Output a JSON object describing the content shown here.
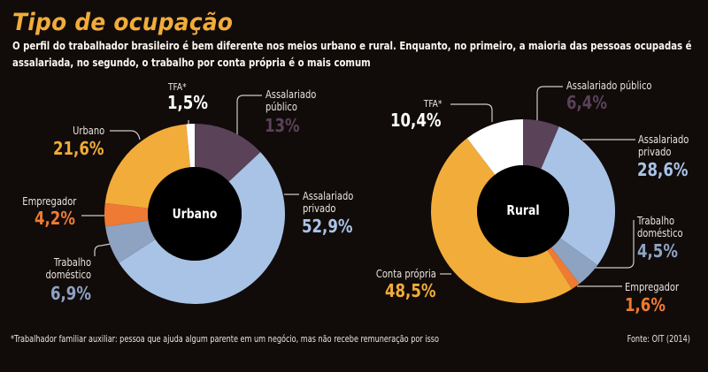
{
  "title": "Tipo de ocupação",
  "subtitle": {
    "line1": "O perfil do trabalhador brasileiro é bem diferente nos meios urbano e rural. Enquanto, no primeiro, a maioria das pessoas ocupadas é",
    "line2": "assalariada, no segundo, o trabalho por conta própria é o mais comum"
  },
  "footnote": "*Trabalhador familiar auxiliar: pessoa que ajuda algum parente em um negócio, mas não recebe remuneração por isso",
  "source": "Fonte: OIT (2014)",
  "colors": {
    "assalariado_publico": "#5a4258",
    "assalariado_privado": "#a9c3e6",
    "trabalho_domestico": "#8ea2c2",
    "empregador": "#ef7a33",
    "conta_propria": "#f2ac3a",
    "tfa": "#ffffff"
  },
  "chart_data": [
    {
      "type": "pie",
      "title": "Urbano",
      "center_label": "Urbano",
      "start": "top",
      "direction": "clockwise",
      "slices": [
        {
          "key": "assalariado_publico",
          "label": "Assalariado público",
          "label_lines": [
            "Assalariado",
            "público"
          ],
          "value": 13,
          "value_label": "13%",
          "value_color": "#5a4258"
        },
        {
          "key": "assalariado_privado",
          "label": "Assalariado privado",
          "label_lines": [
            "Assalariado",
            "privado"
          ],
          "value": 52.9,
          "value_label": "52,9%",
          "value_color": "#a9c3e6"
        },
        {
          "key": "trabalho_domestico",
          "label": "Trabalho doméstico",
          "label_lines": [
            "Trabalho",
            "doméstico"
          ],
          "value": 6.9,
          "value_label": "6,9%",
          "value_color": "#8ea2c2"
        },
        {
          "key": "empregador",
          "label": "Empregador",
          "label_lines": [
            "Empregador"
          ],
          "value": 4.2,
          "value_label": "4,2%",
          "value_color": "#ef7a33"
        },
        {
          "key": "conta_propria",
          "label": "Urbano",
          "label_lines": [
            "Urbano"
          ],
          "value": 21.6,
          "value_label": "21,6%",
          "value_color": "#f2ac3a"
        },
        {
          "key": "tfa",
          "label": "TFA*",
          "label_lines": [
            "TFA*"
          ],
          "value": 1.5,
          "value_label": "1,5%",
          "value_color": "#ffffff"
        }
      ]
    },
    {
      "type": "pie",
      "title": "Rural",
      "center_label": "Rural",
      "start": "top",
      "direction": "clockwise",
      "slices": [
        {
          "key": "assalariado_publico",
          "label": "Assalariado público",
          "label_lines": [
            "Assalariado público"
          ],
          "value": 6.4,
          "value_label": "6,4%",
          "value_color": "#5a4258"
        },
        {
          "key": "assalariado_privado",
          "label": "Assalariado privado",
          "label_lines": [
            "Assalariado",
            "privado"
          ],
          "value": 28.6,
          "value_label": "28,6%",
          "value_color": "#a9c3e6"
        },
        {
          "key": "trabalho_domestico",
          "label": "Trabalho doméstico",
          "label_lines": [
            "Trabalho",
            "doméstico"
          ],
          "value": 4.5,
          "value_label": "4,5%",
          "value_color": "#8ea2c2"
        },
        {
          "key": "empregador",
          "label": "Empregador",
          "label_lines": [
            "Empregador"
          ],
          "value": 1.6,
          "value_label": "1,6%",
          "value_color": "#ef7a33"
        },
        {
          "key": "conta_propria",
          "label": "Conta própria",
          "label_lines": [
            "Conta própria"
          ],
          "value": 48.5,
          "value_label": "48,5%",
          "value_color": "#f2ac3a"
        },
        {
          "key": "tfa",
          "label": "TFA*",
          "label_lines": [
            "TFA*"
          ],
          "value": 10.4,
          "value_label": "10,4%",
          "value_color": "#ffffff"
        }
      ]
    }
  ]
}
